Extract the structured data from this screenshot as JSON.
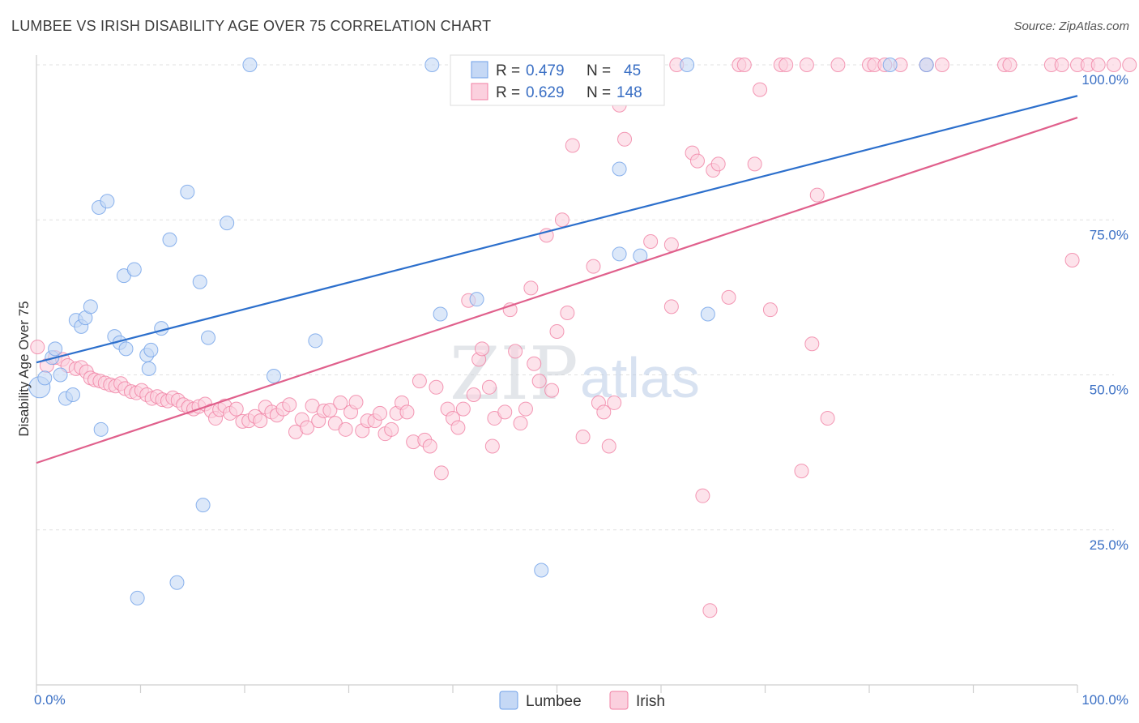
{
  "title": "LUMBEE VS IRISH DISABILITY AGE OVER 75 CORRELATION CHART",
  "source": "Source: ZipAtlas.com",
  "watermark": {
    "zip": "ZIP",
    "atlas": "atlas"
  },
  "colors": {
    "lumbee": "#6fa0e8",
    "irish": "#f07fa3",
    "lumbee_line": "#2c6fcc",
    "irish_line": "#e0608c",
    "tick": "#3a6fc4"
  },
  "chart_data": {
    "type": "scatter",
    "xlabel": "",
    "ylabel": "Disability Age Over 75",
    "xlim": [
      0,
      100
    ],
    "ylim": [
      0,
      104
    ],
    "x_tick_labels": [
      "0.0%",
      "100.0%"
    ],
    "y_tick_labels": [
      "25.0%",
      "50.0%",
      "75.0%",
      "100.0%"
    ],
    "y_ticks": [
      25,
      50,
      75,
      100
    ],
    "grid": true,
    "legend_placement": "bottom",
    "stats": [
      {
        "r_label": "R =",
        "r": "0.479",
        "n_label": "N =",
        "n": "45"
      },
      {
        "r_label": "R =",
        "r": "0.629",
        "n_label": "N =",
        "n": "148"
      }
    ],
    "series": [
      {
        "name": "Lumbee",
        "trend": [
          [
            0,
            52.0
          ],
          [
            100,
            95.0
          ]
        ],
        "points": [
          [
            0.3,
            48
          ],
          [
            0.8,
            49.5
          ],
          [
            1.5,
            52.8
          ],
          [
            1.8,
            54.2
          ],
          [
            2.3,
            50
          ],
          [
            2.8,
            46.2
          ],
          [
            3.5,
            46.8
          ],
          [
            3.8,
            58.8
          ],
          [
            4.3,
            57.8
          ],
          [
            4.7,
            59.2
          ],
          [
            5.2,
            61
          ],
          [
            6,
            77
          ],
          [
            6.2,
            41.2
          ],
          [
            6.8,
            78
          ],
          [
            7.5,
            56.2
          ],
          [
            8,
            55.2
          ],
          [
            8.4,
            66
          ],
          [
            8.6,
            54.2
          ],
          [
            9.4,
            67
          ],
          [
            9.7,
            14
          ],
          [
            10.6,
            53.2
          ],
          [
            10.8,
            51
          ],
          [
            11,
            54
          ],
          [
            12,
            57.5
          ],
          [
            12.8,
            71.8
          ],
          [
            13.5,
            16.5
          ],
          [
            14.5,
            79.5
          ],
          [
            15.7,
            65
          ],
          [
            16,
            29
          ],
          [
            16.5,
            56
          ],
          [
            18.3,
            74.5
          ],
          [
            20.5,
            100
          ],
          [
            22.8,
            49.8
          ],
          [
            26.8,
            55.5
          ],
          [
            38,
            100
          ],
          [
            38.8,
            59.8
          ],
          [
            42.3,
            62.2
          ],
          [
            48.5,
            18.5
          ],
          [
            56,
            83.2
          ],
          [
            56,
            69.5
          ],
          [
            58,
            69.2
          ],
          [
            62.5,
            100
          ],
          [
            64.5,
            59.8
          ],
          [
            82,
            100
          ],
          [
            85.5,
            100
          ]
        ]
      },
      {
        "name": "Irish",
        "trend": [
          [
            0,
            35.8
          ],
          [
            100,
            91.5
          ]
        ],
        "points": [
          [
            0.1,
            54.5
          ],
          [
            1,
            51.5
          ],
          [
            1.8,
            52.8
          ],
          [
            2.5,
            52.5
          ],
          [
            3,
            51.5
          ],
          [
            3.8,
            51
          ],
          [
            4.3,
            51.2
          ],
          [
            4.8,
            50.5
          ],
          [
            5.2,
            49.5
          ],
          [
            5.6,
            49.2
          ],
          [
            6.1,
            49
          ],
          [
            6.6,
            48.7
          ],
          [
            7.1,
            48.4
          ],
          [
            7.6,
            48.2
          ],
          [
            8.1,
            48.6
          ],
          [
            8.5,
            47.8
          ],
          [
            9.1,
            47.3
          ],
          [
            9.6,
            47.1
          ],
          [
            10.1,
            47.5
          ],
          [
            10.6,
            46.8
          ],
          [
            11.1,
            46.2
          ],
          [
            11.6,
            46.5
          ],
          [
            12.1,
            46
          ],
          [
            12.6,
            45.8
          ],
          [
            13.1,
            46.3
          ],
          [
            13.6,
            45.9
          ],
          [
            14.1,
            45.2
          ],
          [
            14.6,
            44.8
          ],
          [
            15.1,
            44.5
          ],
          [
            15.6,
            44.9
          ],
          [
            16.2,
            45.3
          ],
          [
            16.8,
            44.2
          ],
          [
            17.2,
            43
          ],
          [
            17.6,
            44.4
          ],
          [
            18.1,
            45
          ],
          [
            18.6,
            43.8
          ],
          [
            19.2,
            44.5
          ],
          [
            19.8,
            42.5
          ],
          [
            20.4,
            42.6
          ],
          [
            21,
            43.3
          ],
          [
            21.5,
            42.6
          ],
          [
            22,
            44.8
          ],
          [
            22.6,
            44
          ],
          [
            23.1,
            43.5
          ],
          [
            23.7,
            44.5
          ],
          [
            24.3,
            45.2
          ],
          [
            24.9,
            40.8
          ],
          [
            25.5,
            42.8
          ],
          [
            26,
            41.5
          ],
          [
            26.5,
            45
          ],
          [
            27.1,
            42.6
          ],
          [
            27.6,
            44.2
          ],
          [
            28.2,
            44.3
          ],
          [
            28.7,
            42.2
          ],
          [
            29.2,
            45.5
          ],
          [
            29.7,
            41.2
          ],
          [
            30.2,
            44
          ],
          [
            30.7,
            45.6
          ],
          [
            31.3,
            41
          ],
          [
            31.8,
            42.6
          ],
          [
            32.5,
            42.6
          ],
          [
            33,
            43.8
          ],
          [
            33.5,
            40.5
          ],
          [
            34.1,
            41.2
          ],
          [
            34.6,
            43.8
          ],
          [
            35.1,
            45.5
          ],
          [
            35.6,
            44
          ],
          [
            36.2,
            39.2
          ],
          [
            36.8,
            49
          ],
          [
            37.3,
            39.5
          ],
          [
            37.8,
            38.5
          ],
          [
            38.4,
            48
          ],
          [
            38.9,
            34.2
          ],
          [
            39.5,
            44.5
          ],
          [
            40,
            43
          ],
          [
            40.5,
            41.5
          ],
          [
            41,
            44.5
          ],
          [
            41.5,
            62
          ],
          [
            42,
            46.8
          ],
          [
            42.5,
            52.5
          ],
          [
            42.8,
            54.2
          ],
          [
            43.5,
            48
          ],
          [
            43.8,
            38.5
          ],
          [
            44,
            43
          ],
          [
            45,
            44
          ],
          [
            45.5,
            60.5
          ],
          [
            46,
            53.8
          ],
          [
            46.5,
            42.2
          ],
          [
            47,
            44.5
          ],
          [
            47.5,
            64
          ],
          [
            47.8,
            51.8
          ],
          [
            48.3,
            49
          ],
          [
            49,
            72.5
          ],
          [
            49.5,
            47.5
          ],
          [
            50,
            57
          ],
          [
            50.5,
            75
          ],
          [
            51,
            60
          ],
          [
            51.5,
            87
          ],
          [
            52.5,
            40
          ],
          [
            53.5,
            67.5
          ],
          [
            54,
            45.5
          ],
          [
            54.5,
            44
          ],
          [
            55,
            38.5
          ],
          [
            55.5,
            45.5
          ],
          [
            56,
            93.5
          ],
          [
            56.5,
            88
          ],
          [
            59,
            71.5
          ],
          [
            61,
            61
          ],
          [
            61,
            71
          ],
          [
            61.5,
            100
          ],
          [
            63,
            85.8
          ],
          [
            63.5,
            84.5
          ],
          [
            64,
            30.5
          ],
          [
            64.7,
            12
          ],
          [
            65,
            83
          ],
          [
            65.5,
            84
          ],
          [
            66.5,
            62.5
          ],
          [
            67.5,
            100
          ],
          [
            68,
            100
          ],
          [
            69,
            84
          ],
          [
            69.5,
            96
          ],
          [
            70.5,
            60.5
          ],
          [
            71.5,
            100
          ],
          [
            72,
            100
          ],
          [
            73.5,
            34.5
          ],
          [
            74,
            100
          ],
          [
            74.5,
            55
          ],
          [
            75,
            79
          ],
          [
            76,
            43
          ],
          [
            77,
            100
          ],
          [
            80,
            100
          ],
          [
            80.5,
            100
          ],
          [
            81.5,
            100
          ],
          [
            83,
            100
          ],
          [
            85.5,
            100
          ],
          [
            87,
            100
          ],
          [
            93,
            100
          ],
          [
            93.5,
            100
          ],
          [
            97.5,
            100
          ],
          [
            98.5,
            100
          ],
          [
            99.5,
            68.5
          ],
          [
            100,
            100
          ],
          [
            101,
            100
          ],
          [
            102,
            100
          ],
          [
            103.5,
            100
          ],
          [
            105,
            100
          ]
        ]
      }
    ]
  }
}
